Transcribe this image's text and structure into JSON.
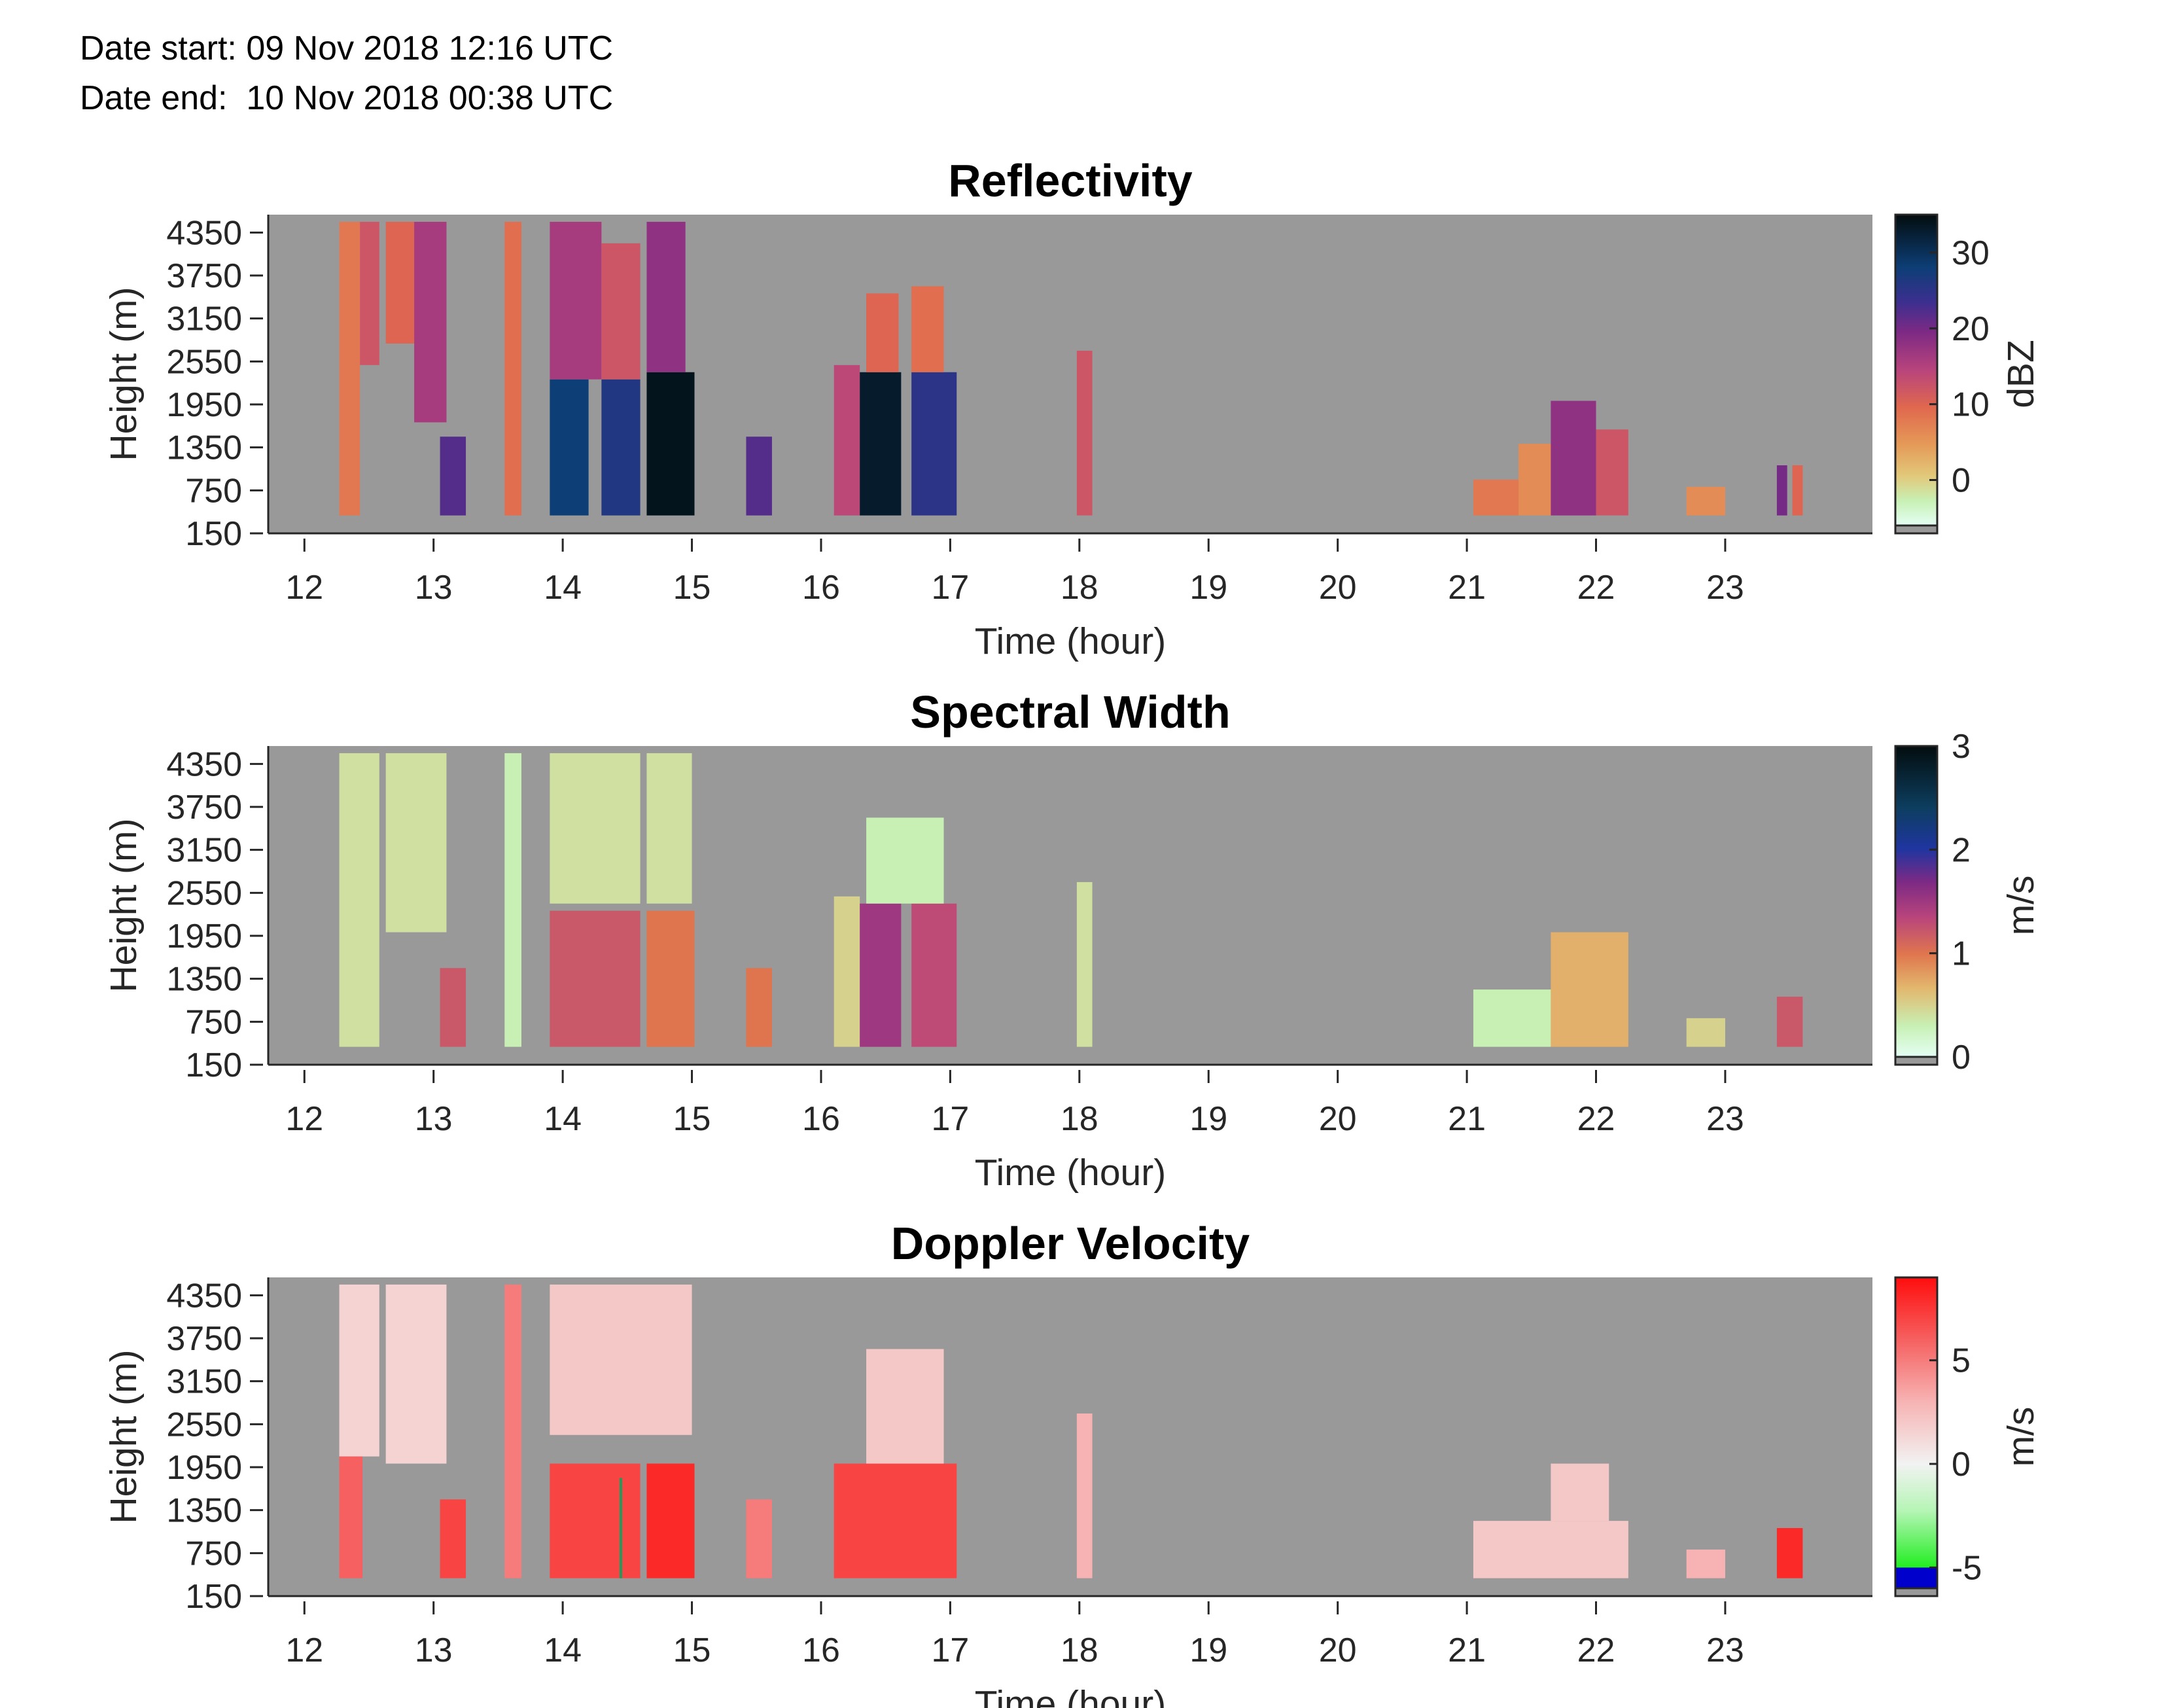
{
  "header": {
    "date_start": "Date start: 09 Nov 2018 12:16 UTC",
    "date_end": "Date end:  10 Nov 2018 00:38 UTC"
  },
  "chart_data": [
    {
      "type": "heatmap",
      "title": "Reflectivity",
      "xlabel": "Time (hour)",
      "ylabel": "Height (m)",
      "x_ticks": [
        "12",
        "13",
        "14",
        "15",
        "16",
        "17",
        "18",
        "19",
        "20",
        "21",
        "22",
        "23"
      ],
      "y_ticks": [
        "150",
        "750",
        "1350",
        "1950",
        "2550",
        "3150",
        "3750",
        "4350"
      ],
      "xlim": [
        11.72,
        24.14
      ],
      "ylim": [
        150,
        4600
      ],
      "colorbar": {
        "label": "dBZ",
        "ticks": [
          "0",
          "10",
          "20",
          "30"
        ],
        "range": [
          -6,
          35
        ]
      },
      "colors": {
        "no_data": "#999999"
      },
      "cells": [
        {
          "t0": 12.27,
          "t1": 12.43,
          "h0": 400,
          "h1": 4500,
          "v": 8
        },
        {
          "t0": 12.43,
          "t1": 12.58,
          "h0": 2500,
          "h1": 4500,
          "v": 12
        },
        {
          "t0": 12.63,
          "t1": 12.85,
          "h0": 2800,
          "h1": 4500,
          "v": 10
        },
        {
          "t0": 12.85,
          "t1": 13.1,
          "h0": 1700,
          "h1": 4500,
          "v": 16
        },
        {
          "t0": 13.05,
          "t1": 13.25,
          "h0": 400,
          "h1": 1500,
          "v": 22
        },
        {
          "t0": 13.55,
          "t1": 13.68,
          "h0": 400,
          "h1": 4500,
          "v": 9
        },
        {
          "t0": 13.9,
          "t1": 14.2,
          "h0": 400,
          "h1": 2300,
          "v": 28
        },
        {
          "t0": 13.9,
          "t1": 14.3,
          "h0": 2300,
          "h1": 4500,
          "v": 16
        },
        {
          "t0": 14.3,
          "t1": 14.6,
          "h0": 400,
          "h1": 2300,
          "v": 26
        },
        {
          "t0": 14.3,
          "t1": 14.6,
          "h0": 2300,
          "h1": 4200,
          "v": 12
        },
        {
          "t0": 14.65,
          "t1": 15.02,
          "h0": 400,
          "h1": 2400,
          "v": 34
        },
        {
          "t0": 14.65,
          "t1": 14.95,
          "h0": 2400,
          "h1": 4500,
          "v": 18
        },
        {
          "t0": 15.42,
          "t1": 15.62,
          "h0": 400,
          "h1": 1500,
          "v": 22
        },
        {
          "t0": 16.1,
          "t1": 16.3,
          "h0": 400,
          "h1": 2500,
          "v": 14
        },
        {
          "t0": 16.3,
          "t1": 16.62,
          "h0": 400,
          "h1": 2400,
          "v": 33
        },
        {
          "t0": 16.35,
          "t1": 16.6,
          "h0": 2400,
          "h1": 3500,
          "v": 10
        },
        {
          "t0": 16.7,
          "t1": 17.05,
          "h0": 400,
          "h1": 2400,
          "v": 25
        },
        {
          "t0": 16.7,
          "t1": 16.95,
          "h0": 2400,
          "h1": 3600,
          "v": 9
        },
        {
          "t0": 17.98,
          "t1": 18.1,
          "h0": 400,
          "h1": 2700,
          "v": 12
        },
        {
          "t0": 21.05,
          "t1": 21.4,
          "h0": 400,
          "h1": 900,
          "v": 8
        },
        {
          "t0": 21.4,
          "t1": 21.65,
          "h0": 400,
          "h1": 1400,
          "v": 6
        },
        {
          "t0": 21.65,
          "t1": 22.0,
          "h0": 400,
          "h1": 2000,
          "v": 18
        },
        {
          "t0": 22.0,
          "t1": 22.25,
          "h0": 400,
          "h1": 1600,
          "v": 12
        },
        {
          "t0": 22.7,
          "t1": 23.0,
          "h0": 400,
          "h1": 800,
          "v": 6
        },
        {
          "t0": 23.4,
          "t1": 23.48,
          "h0": 400,
          "h1": 1100,
          "v": 20
        },
        {
          "t0": 23.52,
          "t1": 23.6,
          "h0": 400,
          "h1": 1100,
          "v": 10
        }
      ]
    },
    {
      "type": "heatmap",
      "title": "Spectral Width",
      "xlabel": "Time (hour)",
      "ylabel": "Height (m)",
      "x_ticks": [
        "12",
        "13",
        "14",
        "15",
        "16",
        "17",
        "18",
        "19",
        "20",
        "21",
        "22",
        "23"
      ],
      "y_ticks": [
        "150",
        "750",
        "1350",
        "1950",
        "2550",
        "3150",
        "3750",
        "4350"
      ],
      "xlim": [
        11.72,
        24.14
      ],
      "ylim": [
        150,
        4600
      ],
      "colorbar": {
        "label": "m/s",
        "ticks": [
          "0",
          "1",
          "2",
          "3"
        ],
        "range": [
          0,
          3
        ]
      },
      "colors": {
        "no_data": "#999999"
      },
      "cells": [
        {
          "t0": 12.27,
          "t1": 12.58,
          "h0": 400,
          "h1": 4500,
          "v": 0.4
        },
        {
          "t0": 12.63,
          "t1": 13.1,
          "h0": 2000,
          "h1": 4500,
          "v": 0.4
        },
        {
          "t0": 13.05,
          "t1": 13.25,
          "h0": 400,
          "h1": 1500,
          "v": 1.2
        },
        {
          "t0": 13.55,
          "t1": 13.68,
          "h0": 400,
          "h1": 4500,
          "v": 0.3
        },
        {
          "t0": 13.9,
          "t1": 14.6,
          "h0": 2400,
          "h1": 4500,
          "v": 0.4
        },
        {
          "t0": 13.9,
          "t1": 14.6,
          "h0": 400,
          "h1": 2300,
          "v": 1.2
        },
        {
          "t0": 14.65,
          "t1": 15.02,
          "h0": 400,
          "h1": 2300,
          "v": 1.0
        },
        {
          "t0": 14.65,
          "t1": 15.0,
          "h0": 2400,
          "h1": 4500,
          "v": 0.4
        },
        {
          "t0": 15.42,
          "t1": 15.62,
          "h0": 400,
          "h1": 1500,
          "v": 1.0
        },
        {
          "t0": 16.1,
          "t1": 16.3,
          "h0": 400,
          "h1": 2500,
          "v": 0.5
        },
        {
          "t0": 16.3,
          "t1": 16.62,
          "h0": 400,
          "h1": 2400,
          "v": 1.5
        },
        {
          "t0": 16.7,
          "t1": 17.05,
          "h0": 400,
          "h1": 2400,
          "v": 1.3
        },
        {
          "t0": 16.35,
          "t1": 16.95,
          "h0": 2400,
          "h1": 3600,
          "v": 0.3
        },
        {
          "t0": 17.98,
          "t1": 18.1,
          "h0": 400,
          "h1": 2700,
          "v": 0.4
        },
        {
          "t0": 21.05,
          "t1": 21.65,
          "h0": 400,
          "h1": 1200,
          "v": 0.3
        },
        {
          "t0": 21.65,
          "t1": 22.25,
          "h0": 400,
          "h1": 2000,
          "v": 0.7
        },
        {
          "t0": 22.7,
          "t1": 23.0,
          "h0": 400,
          "h1": 800,
          "v": 0.5
        },
        {
          "t0": 23.4,
          "t1": 23.6,
          "h0": 400,
          "h1": 1100,
          "v": 1.2
        }
      ]
    },
    {
      "type": "heatmap",
      "title": "Doppler Velocity",
      "xlabel": "Time (hour)",
      "ylabel": "Height (m)",
      "x_ticks": [
        "12",
        "13",
        "14",
        "15",
        "16",
        "17",
        "18",
        "19",
        "20",
        "21",
        "22",
        "23"
      ],
      "y_ticks": [
        "150",
        "750",
        "1350",
        "1950",
        "2550",
        "3150",
        "3750",
        "4350"
      ],
      "xlim": [
        11.72,
        24.14
      ],
      "ylim": [
        150,
        4600
      ],
      "colorbar": {
        "label": "m/s",
        "ticks": [
          "-5",
          "0",
          "5"
        ],
        "range": [
          -6,
          9
        ]
      },
      "colors": {
        "no_data": "#999999"
      },
      "cells": [
        {
          "t0": 12.27,
          "t1": 12.58,
          "h0": 2100,
          "h1": 4500,
          "v": 1.5
        },
        {
          "t0": 12.27,
          "t1": 12.45,
          "h0": 400,
          "h1": 2100,
          "v": 6
        },
        {
          "t0": 12.63,
          "t1": 13.1,
          "h0": 2000,
          "h1": 4500,
          "v": 1.5
        },
        {
          "t0": 13.05,
          "t1": 13.25,
          "h0": 400,
          "h1": 1500,
          "v": 7
        },
        {
          "t0": 13.55,
          "t1": 13.68,
          "h0": 400,
          "h1": 4500,
          "v": 5
        },
        {
          "t0": 13.9,
          "t1": 15.0,
          "h0": 2400,
          "h1": 4500,
          "v": 2
        },
        {
          "t0": 13.9,
          "t1": 14.6,
          "h0": 400,
          "h1": 2000,
          "v": 7
        },
        {
          "t0": 14.65,
          "t1": 15.02,
          "h0": 400,
          "h1": 2000,
          "v": 8
        },
        {
          "t0": 14.44,
          "t1": 14.46,
          "h0": 400,
          "h1": 1800,
          "v": -5
        },
        {
          "t0": 15.42,
          "t1": 15.62,
          "h0": 400,
          "h1": 1500,
          "v": 5
        },
        {
          "t0": 16.1,
          "t1": 17.05,
          "h0": 400,
          "h1": 2000,
          "v": 7
        },
        {
          "t0": 16.35,
          "t1": 16.95,
          "h0": 2000,
          "h1": 3600,
          "v": 2
        },
        {
          "t0": 17.98,
          "t1": 18.1,
          "h0": 400,
          "h1": 2700,
          "v": 3
        },
        {
          "t0": 21.05,
          "t1": 22.25,
          "h0": 400,
          "h1": 1200,
          "v": 2
        },
        {
          "t0": 21.65,
          "t1": 22.1,
          "h0": 1200,
          "h1": 2000,
          "v": 2
        },
        {
          "t0": 22.7,
          "t1": 23.0,
          "h0": 400,
          "h1": 800,
          "v": 3
        },
        {
          "t0": 23.4,
          "t1": 23.6,
          "h0": 400,
          "h1": 1100,
          "v": 8
        }
      ]
    }
  ]
}
